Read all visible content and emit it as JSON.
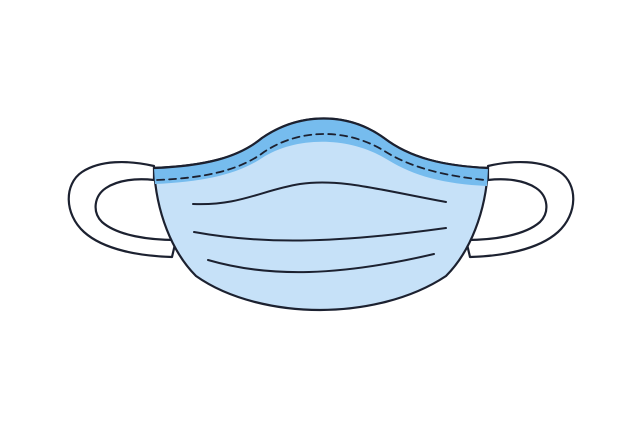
{
  "illustration": {
    "subject": "face-mask-icon",
    "colors": {
      "background": "#ffffff",
      "mask_fill": "#c6e1f8",
      "nose_band_fill": "#76bcee",
      "ear_loop_fill": "#ffffff",
      "outline": "#1c2130"
    }
  }
}
